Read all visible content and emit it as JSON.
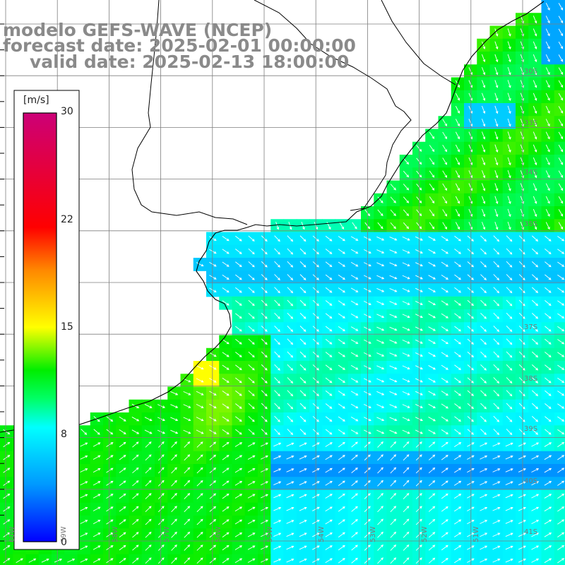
{
  "title": {
    "line1": "modelo GEFS-WAVE (NCEP)",
    "line2": "forecast date: 2025-02-01 00:00:00",
    "line3": "valid date: 2025-02-13 18:00:00"
  },
  "colorbar": {
    "unit": "[m/s]",
    "ticks": [
      "30",
      "22",
      "15",
      "8",
      "0"
    ],
    "min": 0,
    "max": 30,
    "stops": [
      "#0000ff",
      "#0099ff",
      "#00ffff",
      "#00ff66",
      "#00ee00",
      "#ffff00",
      "#ff8800",
      "#ff0000",
      "#cc0077"
    ]
  },
  "map": {
    "land_color": "#ffffff",
    "grid_color": "#7f7f7f",
    "coast_color": "#000000",
    "arrow_color": "#ffffff",
    "lat_labels": [
      "30S",
      "33S",
      "34S",
      "35S",
      "37S",
      "38S",
      "39S",
      "40S",
      "41S"
    ],
    "lon_labels": [
      "60W",
      "59W",
      "58W",
      "57W",
      "56W",
      "55W",
      "54W",
      "53W",
      "52W",
      "51W"
    ],
    "field_summary": {
      "nearshore_band": "green (10-13 m/s)",
      "coastal_plume": "green-yellow up to ~15 m/s",
      "offshore_north": "green (11-13 m/s)",
      "plata_estuary": "blue (5-7 m/s)",
      "southern_band": "dark blue (3-5 m/s)"
    }
  }
}
